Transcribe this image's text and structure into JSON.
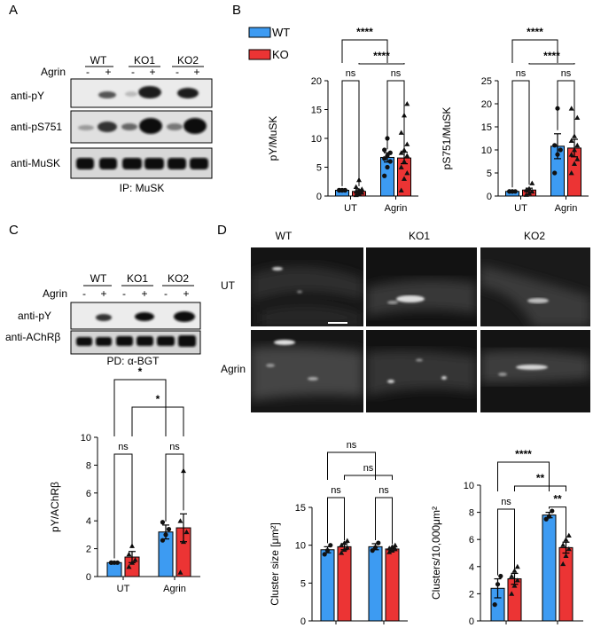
{
  "panels": {
    "A": {
      "letter": "A",
      "lanes": [
        "WT",
        "KO1",
        "KO2"
      ],
      "treatment": "Agrin",
      "signs": [
        "-",
        "+",
        "-",
        "+",
        "-",
        "+"
      ],
      "blots": [
        "anti-pY",
        "anti-pS751",
        "anti-MuSK"
      ],
      "footer": "IP: MuSK"
    },
    "B": {
      "letter": "B"
    },
    "C": {
      "letter": "C",
      "lanes": [
        "WT",
        "KO1",
        "KO2"
      ],
      "treatment": "Agrin",
      "signs": [
        "-",
        "+",
        "-",
        "+",
        "-",
        "+"
      ],
      "blots": [
        "anti-pY",
        "anti-AChRβ"
      ],
      "footer": "PD: α-BGT"
    },
    "D": {
      "letter": "D",
      "columns": [
        "WT",
        "KO1",
        "KO2"
      ],
      "rows": [
        "UT",
        "Agrin"
      ]
    }
  },
  "legend": {
    "items": [
      {
        "label": "WT",
        "color": "#3d9bf2"
      },
      {
        "label": "KO",
        "color": "#ec3434"
      }
    ]
  },
  "chart_data": [
    {
      "id": "B1",
      "type": "bar",
      "categories": [
        "UT",
        "Agrin"
      ],
      "ylabel": "pY/MuSK",
      "ylim": [
        0,
        20
      ],
      "yticks": [
        0,
        5,
        10,
        15,
        20
      ],
      "series": [
        {
          "name": "WT",
          "values": [
            1.0,
            6.7
          ],
          "errors": [
            0.1,
            0.8
          ],
          "points": [
            [
              1,
              1,
              1,
              1,
              1,
              1,
              1,
              1
            ],
            [
              3.5,
              5,
              6,
              6.5,
              7,
              7.5,
              8,
              10
            ]
          ]
        },
        {
          "name": "KO",
          "values": [
            0.8,
            6.6
          ],
          "errors": [
            0.3,
            1.0
          ],
          "points": [
            [
              0.2,
              0.4,
              0.6,
              0.8,
              1,
              1.2,
              1.6,
              2.8
            ],
            [
              1,
              3,
              4,
              5,
              6,
              7,
              7.5,
              8,
              9,
              11,
              14,
              16
            ]
          ]
        }
      ],
      "brackets": [
        {
          "from": [
            0,
            0
          ],
          "to": [
            0,
            1
          ],
          "label": "ns"
        },
        {
          "from": [
            1,
            0
          ],
          "to": [
            1,
            1
          ],
          "label": "ns"
        },
        {
          "from": [
            0,
            0
          ],
          "to": [
            1,
            0
          ],
          "label": "****"
        },
        {
          "from": [
            0,
            1
          ],
          "to": [
            1,
            1
          ],
          "label": "****"
        }
      ]
    },
    {
      "id": "B2",
      "type": "bar",
      "categories": [
        "UT",
        "Agrin"
      ],
      "ylabel": "pS751/MuSK",
      "ylim": [
        0,
        25
      ],
      "yticks": [
        0,
        5,
        10,
        15,
        20,
        25
      ],
      "series": [
        {
          "name": "WT",
          "values": [
            1.0,
            10.8
          ],
          "errors": [
            0.1,
            2.7
          ],
          "points": [
            [
              1,
              1,
              1,
              1,
              1
            ],
            [
              5,
              9,
              10,
              11,
              19
            ]
          ]
        },
        {
          "name": "KO",
          "values": [
            1.3,
            10.4
          ],
          "errors": [
            0.4,
            1.9
          ],
          "points": [
            [
              0.3,
              0.6,
              1,
              1.3,
              1.6,
              2.8
            ],
            [
              5,
              7,
              8,
              9,
              10,
              11,
              12,
              13,
              17,
              19
            ]
          ]
        }
      ],
      "brackets": [
        {
          "from": [
            0,
            0
          ],
          "to": [
            0,
            1
          ],
          "label": "ns"
        },
        {
          "from": [
            1,
            0
          ],
          "to": [
            1,
            1
          ],
          "label": "ns"
        },
        {
          "from": [
            0,
            0
          ],
          "to": [
            1,
            0
          ],
          "label": "****"
        },
        {
          "from": [
            0,
            1
          ],
          "to": [
            1,
            1
          ],
          "label": "****"
        }
      ]
    },
    {
      "id": "C1",
      "type": "bar",
      "categories": [
        "UT",
        "Agrin"
      ],
      "ylabel": "pY/AChRβ",
      "ylim": [
        0,
        10
      ],
      "yticks": [
        0,
        2,
        4,
        6,
        8,
        10
      ],
      "series": [
        {
          "name": "WT",
          "values": [
            1.0,
            3.2
          ],
          "errors": [
            0.05,
            0.5
          ],
          "points": [
            [
              1,
              1,
              1,
              1
            ],
            [
              2.6,
              3.0,
              3.4,
              3.9
            ]
          ]
        },
        {
          "name": "KO",
          "values": [
            1.4,
            3.5
          ],
          "errors": [
            0.4,
            1.0
          ],
          "points": [
            [
              0.7,
              1.0,
              1.2,
              1.6,
              2.2
            ],
            [
              0.3,
              2.5,
              3.2,
              4.0,
              7.6
            ]
          ]
        }
      ],
      "brackets": [
        {
          "from": [
            0,
            0
          ],
          "to": [
            0,
            1
          ],
          "label": "ns"
        },
        {
          "from": [
            1,
            0
          ],
          "to": [
            1,
            1
          ],
          "label": "ns"
        },
        {
          "from": [
            0,
            0
          ],
          "to": [
            1,
            0
          ],
          "label": "*"
        },
        {
          "from": [
            0,
            1
          ],
          "to": [
            1,
            1
          ],
          "label": "*"
        }
      ]
    },
    {
      "id": "D1",
      "type": "bar",
      "categories": [
        "UT",
        "Agrin"
      ],
      "ylabel": "Cluster size  [μm²]",
      "ylim": [
        0,
        15
      ],
      "yticks": [
        0,
        5,
        10,
        15
      ],
      "series": [
        {
          "name": "WT",
          "values": [
            9.4,
            9.8
          ],
          "errors": [
            0.4,
            0.4
          ],
          "points": [
            [
              8.8,
              9.3,
              10.0
            ],
            [
              9.3,
              9.7,
              10.3
            ]
          ]
        },
        {
          "name": "KO",
          "values": [
            9.8,
            9.5
          ],
          "errors": [
            0.4,
            0.2
          ],
          "points": [
            [
              9.0,
              9.4,
              9.7,
              10.0,
              10.3,
              10.6
            ],
            [
              9.1,
              9.3,
              9.5,
              9.6,
              9.8,
              10.0
            ]
          ]
        }
      ],
      "brackets": [
        {
          "from": [
            0,
            0
          ],
          "to": [
            0,
            1
          ],
          "label": "ns"
        },
        {
          "from": [
            1,
            0
          ],
          "to": [
            1,
            1
          ],
          "label": "ns"
        },
        {
          "from": [
            0,
            0
          ],
          "to": [
            1,
            0
          ],
          "label": "ns"
        },
        {
          "from": [
            0,
            1
          ],
          "to": [
            1,
            1
          ],
          "label": "ns"
        }
      ]
    },
    {
      "id": "D2",
      "type": "bar",
      "categories": [
        "UT",
        "Agrin"
      ],
      "ylabel": "Clusters/10,000μm²",
      "ylim": [
        0,
        10
      ],
      "yticks": [
        0,
        2,
        4,
        6,
        8,
        10
      ],
      "series": [
        {
          "name": "WT",
          "values": [
            2.4,
            7.8
          ],
          "errors": [
            0.7,
            0.2
          ],
          "points": [
            [
              1.2,
              2.7,
              3.3
            ],
            [
              7.5,
              7.7,
              8.1
            ]
          ]
        },
        {
          "name": "KO",
          "values": [
            3.1,
            5.4
          ],
          "errors": [
            0.4,
            0.4
          ],
          "points": [
            [
              2.0,
              2.6,
              3.0,
              3.3,
              3.7,
              4.0
            ],
            [
              4.2,
              4.8,
              5.3,
              5.6,
              6.0,
              6.3
            ]
          ]
        }
      ],
      "brackets": [
        {
          "from": [
            0,
            0
          ],
          "to": [
            0,
            1
          ],
          "label": "ns"
        },
        {
          "from": [
            1,
            0
          ],
          "to": [
            1,
            1
          ],
          "label": "**"
        },
        {
          "from": [
            0,
            0
          ],
          "to": [
            1,
            0
          ],
          "label": "****"
        },
        {
          "from": [
            0,
            1
          ],
          "to": [
            1,
            1
          ],
          "label": "**"
        }
      ]
    }
  ]
}
